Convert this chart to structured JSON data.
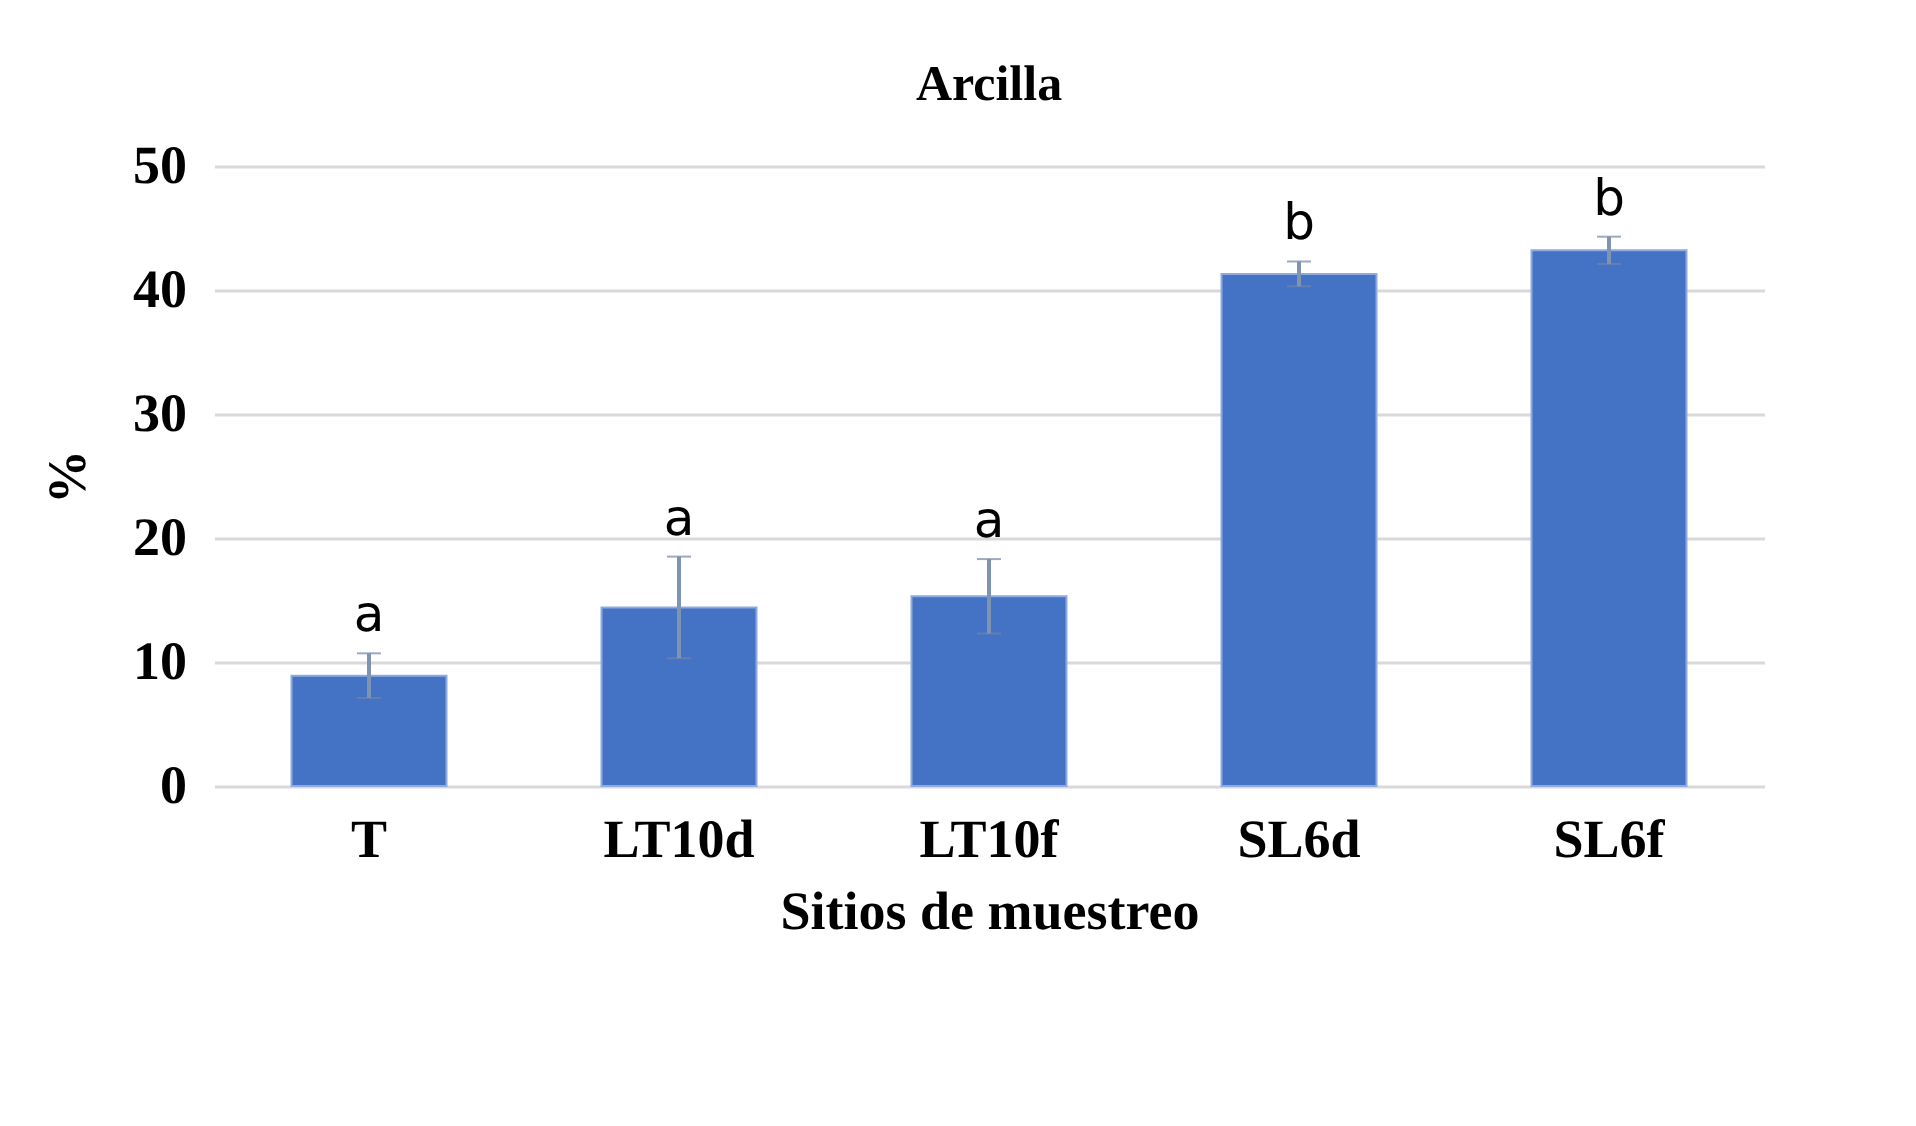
{
  "chart_data": {
    "type": "bar",
    "title": "Arcilla",
    "xlabel": "Sitios de muestreo",
    "ylabel": "%",
    "categories": [
      "T",
      "LT10d",
      "LT10f",
      "SL6d",
      "SL6f"
    ],
    "values": [
      8.9,
      14.4,
      15.3,
      41.3,
      43.2
    ],
    "errors": [
      1.8,
      4.1,
      3.0,
      1.0,
      1.1
    ],
    "color": "#4472c4",
    "ylim": [
      0,
      50
    ],
    "yticks": [
      0,
      10,
      20,
      30,
      40,
      50
    ],
    "grid": "y",
    "annotations": [
      {
        "text": "a",
        "x": "T",
        "y": 10.7
      },
      {
        "text": "a",
        "x": "LT10d",
        "y": 18.5
      },
      {
        "text": "a",
        "x": "LT10f",
        "y": 18.3
      },
      {
        "text": "b",
        "x": "SL6d",
        "y": 42.3
      },
      {
        "text": "b",
        "x": "SL6f",
        "y": 44.3
      }
    ]
  }
}
